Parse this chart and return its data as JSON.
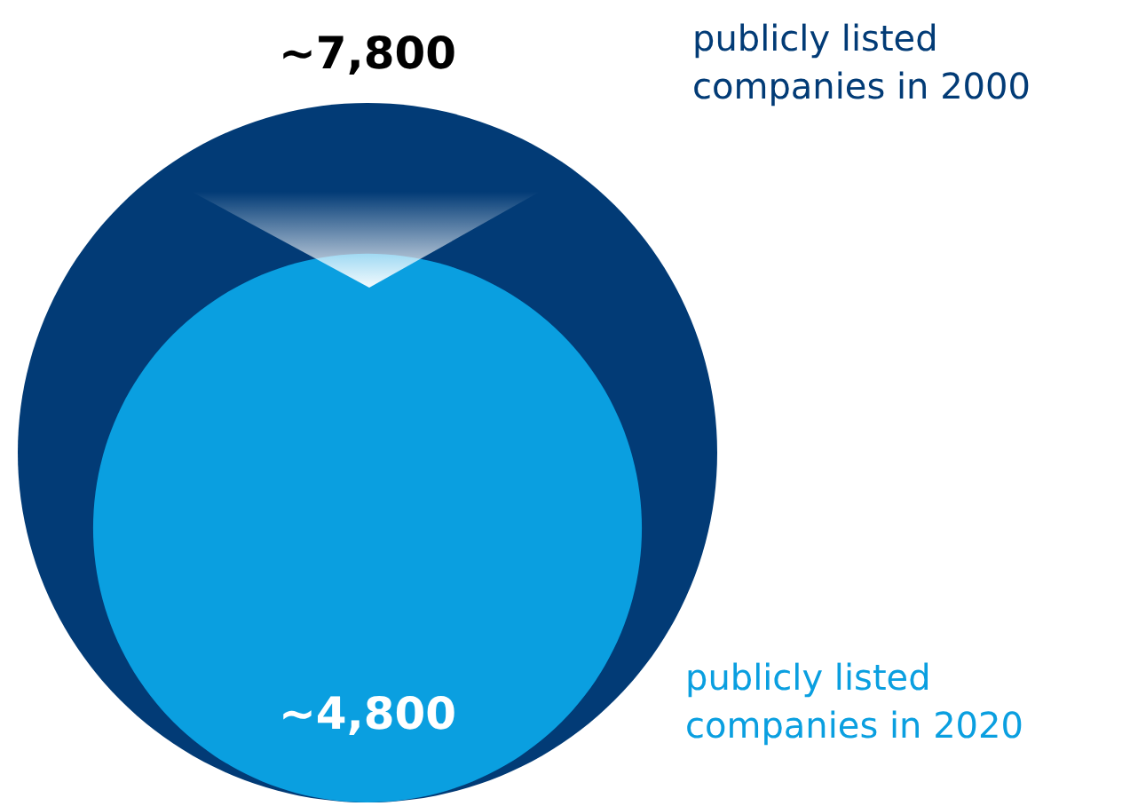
{
  "chart_data": {
    "type": "other",
    "categories": [
      "publicly listed companies in 2000",
      "publicly listed companies in 2020"
    ],
    "values": [
      7800,
      4800
    ],
    "value_labels": [
      "~7,800",
      "~4,800"
    ],
    "colors": [
      "#023b76",
      "#0a9fe0"
    ]
  }
}
